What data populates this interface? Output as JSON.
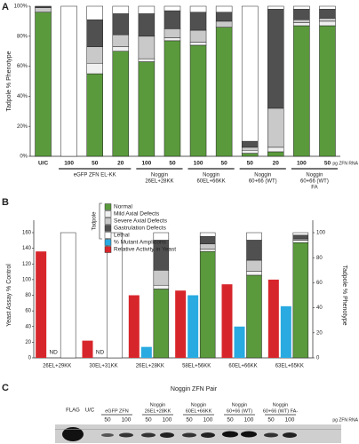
{
  "chart_data": [
    {
      "type": "stacked_bar",
      "panel": "A",
      "ylabel": "Tadpole % Phenotype",
      "categories": [
        "U/C",
        "100",
        "50",
        "20",
        "100",
        "50",
        "100",
        "50",
        "50",
        "20",
        "100",
        "50"
      ],
      "groups": [
        {
          "lines": [
            "eGFP ZFN EL-KK"
          ],
          "start": 1,
          "end": 3
        },
        {
          "lines": [
            "Noggin",
            "26EL+28KK"
          ],
          "start": 4,
          "end": 5
        },
        {
          "lines": [
            "Noggin",
            "60EL+66KK"
          ],
          "start": 6,
          "end": 7
        },
        {
          "lines": [
            "Noggin",
            "60+66 (WT)"
          ],
          "start": 8,
          "end": 9
        },
        {
          "lines": [
            "Noggin",
            "60+66 (WT)",
            "FA"
          ],
          "start": 10,
          "end": 11
        }
      ],
      "unit_label": "pg ZFN RNA",
      "ylim": [
        0,
        100
      ],
      "yticks": [
        {
          "value": 0,
          "label": "0%"
        },
        {
          "value": 20,
          "label": "20%"
        },
        {
          "value": 40,
          "label": "40%"
        },
        {
          "value": 60,
          "label": "60%"
        },
        {
          "value": 80,
          "label": "80%"
        },
        {
          "value": 100,
          "label": "100%"
        }
      ],
      "series": [
        {
          "color": "#5a9a3c",
          "values": [
            96,
            0,
            55,
            70,
            63,
            77,
            74,
            86,
            2,
            3,
            87,
            87
          ]
        },
        {
          "color": "#f0f0f0",
          "values": [
            0,
            0,
            7,
            3,
            2,
            2,
            2,
            0,
            2,
            3,
            2,
            3
          ]
        },
        {
          "color": "#c9c9c9",
          "values": [
            3,
            0,
            11,
            8,
            15,
            6,
            8,
            4,
            2,
            26,
            2,
            2
          ]
        },
        {
          "color": "#505050",
          "values": [
            1,
            0,
            18,
            14,
            15,
            12,
            12,
            6,
            4,
            66,
            7,
            6
          ]
        },
        {
          "color": "#ffffff",
          "values": [
            0,
            100,
            9,
            5,
            5,
            3,
            4,
            4,
            90,
            2,
            2,
            2
          ]
        }
      ]
    },
    {
      "type": "combo_bar",
      "panel": "B",
      "ylabel": "Yeast Assay % Control",
      "y2label": "Tadpole % Phenotype",
      "legend_group": "Tadpole",
      "categories": [
        "26EL+29KK",
        "30EL+31KK",
        "26EL+28KK",
        "58EL+56KK",
        "60EL+66KK",
        "63EL+65KK"
      ],
      "ylim": [
        0,
        160
      ],
      "yticks": [
        0,
        20,
        40,
        60,
        80,
        100,
        120,
        140,
        160
      ],
      "y2lim": [
        0,
        100
      ],
      "y2ticks": [
        0,
        20,
        40,
        60,
        80,
        100
      ],
      "series": [
        {
          "name": "Normal",
          "color": "#5a9a3c",
          "axis": "y2",
          "values": [
            0,
            0,
            55,
            85,
            66,
            92
          ]
        },
        {
          "name": "Mild Axial Defects",
          "color": "#f0f0f0",
          "axis": "y2",
          "values": [
            0,
            0,
            3,
            2,
            3,
            2
          ]
        },
        {
          "name": "Severe Axial Defects",
          "color": "#c9c9c9",
          "axis": "y2",
          "values": [
            0,
            0,
            12,
            4,
            9,
            1
          ]
        },
        {
          "name": "Gastrulation Defects",
          "color": "#505050",
          "axis": "y2",
          "values": [
            0,
            0,
            24,
            6,
            16,
            3
          ]
        },
        {
          "name": "Lethal",
          "color": "#ffffff",
          "axis": "y2",
          "values": [
            100,
            100,
            6,
            3,
            6,
            2
          ]
        },
        {
          "name": "% Mutant Amplicons",
          "color": "#29aae1",
          "axis": "y",
          "values": [
            null,
            null,
            14,
            80,
            40,
            66
          ]
        },
        {
          "name": "Relative Activity in Yeast",
          "color": "#d7262b",
          "axis": "y",
          "values": [
            136,
            22,
            80,
            86,
            94,
            100
          ]
        }
      ],
      "annotations": [
        {
          "text": "ND",
          "category": 0
        },
        {
          "text": "ND",
          "category": 1
        }
      ]
    }
  ],
  "gel": {
    "panel": "C",
    "title": "Noggin ZFN Pair",
    "lanes": [
      "FLAG",
      "U/C"
    ],
    "groups": [
      {
        "lines": [
          "eGFP ZFN"
        ],
        "doses": [
          50,
          100
        ]
      },
      {
        "lines": [
          "Noggin",
          "26EL+28KK"
        ],
        "doses": [
          50,
          100
        ]
      },
      {
        "lines": [
          "Noggin",
          "60EL+66KK"
        ],
        "doses": [
          50,
          100
        ]
      },
      {
        "lines": [
          "Noggin",
          "60+66 (WT)"
        ],
        "doses": [
          50,
          100
        ]
      },
      {
        "lines": [
          "Noggin",
          "60+66 (WT) FA-"
        ],
        "doses": [
          50,
          100
        ]
      }
    ],
    "unit_label": "pg ZFN RNA"
  }
}
